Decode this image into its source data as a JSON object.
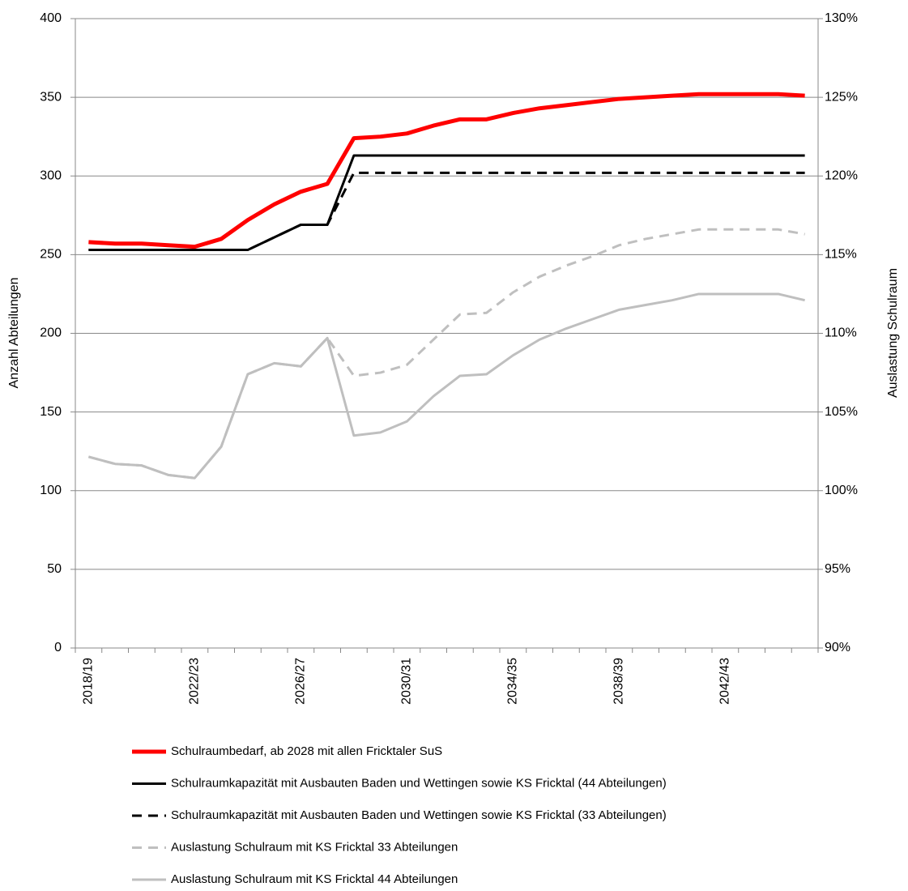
{
  "chart_data": {
    "type": "line",
    "y_label": "Anzahl Abteilungen",
    "y2_label": "Auslastung Schulraum",
    "categories": [
      "2018/19",
      null,
      null,
      null,
      "2022/23",
      null,
      null,
      null,
      "2026/27",
      null,
      null,
      null,
      "2030/31",
      null,
      null,
      null,
      "2034/35",
      null,
      null,
      null,
      "2038/39",
      null,
      null,
      null,
      "2042/43",
      null,
      null,
      null
    ],
    "ylim": [
      0,
      400
    ],
    "yticks": [
      0,
      50,
      100,
      150,
      200,
      250,
      300,
      350,
      400
    ],
    "y2lim": [
      90,
      130
    ],
    "y2ticks": [
      {
        "value": 90,
        "label": "90%"
      },
      {
        "value": 95,
        "label": "95%"
      },
      {
        "value": 100,
        "label": "100%"
      },
      {
        "value": 105,
        "label": "105%"
      },
      {
        "value": 110,
        "label": "110%"
      },
      {
        "value": 115,
        "label": "115%"
      },
      {
        "value": 120,
        "label": "120%"
      },
      {
        "value": 125,
        "label": "125%"
      },
      {
        "value": 130,
        "label": "130%"
      }
    ],
    "grid": true,
    "series": [
      {
        "name": "Schulraumbedarf, ab 2028 mit allen Fricktaler SuS",
        "color": "#ff0000",
        "linewidth": 5,
        "dashed": false,
        "values": [
          258,
          257,
          257,
          256,
          255,
          260,
          272,
          282,
          290,
          295,
          324,
          325,
          327,
          332,
          336,
          336,
          340,
          343,
          345,
          347,
          349,
          350,
          351,
          352,
          352,
          352,
          352,
          351
        ]
      },
      {
        "name": "Schulraumkapazität mit Ausbauten Baden und Wettingen sowie KS Fricktal (44 Abteilungen)",
        "color": "#000000",
        "linewidth": 3,
        "dashed": false,
        "values": [
          253,
          253,
          253,
          253,
          253,
          253,
          253,
          261,
          269,
          269,
          313,
          313,
          313,
          313,
          313,
          313,
          313,
          313,
          313,
          313,
          313,
          313,
          313,
          313,
          313,
          313,
          313,
          313
        ]
      },
      {
        "name": "Schulraumkapazität mit Ausbauten Baden und Wettingen sowie KS Fricktal (33 Abteilungen)",
        "color": "#000000",
        "linewidth": 3,
        "dashed": true,
        "values": [
          253,
          253,
          253,
          253,
          253,
          253,
          253,
          261,
          269,
          269,
          302,
          302,
          302,
          302,
          302,
          302,
          302,
          302,
          302,
          302,
          302,
          302,
          302,
          302,
          302,
          302,
          302,
          302
        ]
      },
      {
        "name": "Auslastung Schulraum mit KS Fricktal 33 Abteilungen",
        "color": "#bfbfbf",
        "linewidth": 3,
        "dashed": true,
        "axis": "y2",
        "values": [
          102.15,
          101.7,
          101.6,
          101,
          100.8,
          102.8,
          107.4,
          108.1,
          107.9,
          109.7,
          107.3,
          107.5,
          108,
          109.6,
          111.2,
          111.3,
          112.6,
          113.6,
          114.3,
          114.9,
          115.6,
          116,
          116.3,
          116.6,
          116.6,
          116.6,
          116.6,
          116.3
        ]
      },
      {
        "name": "Auslastung Schulraum mit KS Fricktal 44 Abteilungen",
        "color": "#bfbfbf",
        "linewidth": 3,
        "dashed": false,
        "axis": "y2",
        "values": [
          102.15,
          101.7,
          101.6,
          101,
          100.8,
          102.8,
          107.4,
          108.1,
          107.9,
          109.7,
          103.5,
          103.7,
          104.4,
          106,
          107.3,
          107.4,
          108.6,
          109.6,
          110.3,
          110.9,
          111.5,
          111.8,
          112.1,
          112.5,
          112.5,
          112.5,
          112.5,
          112.1
        ]
      }
    ]
  }
}
